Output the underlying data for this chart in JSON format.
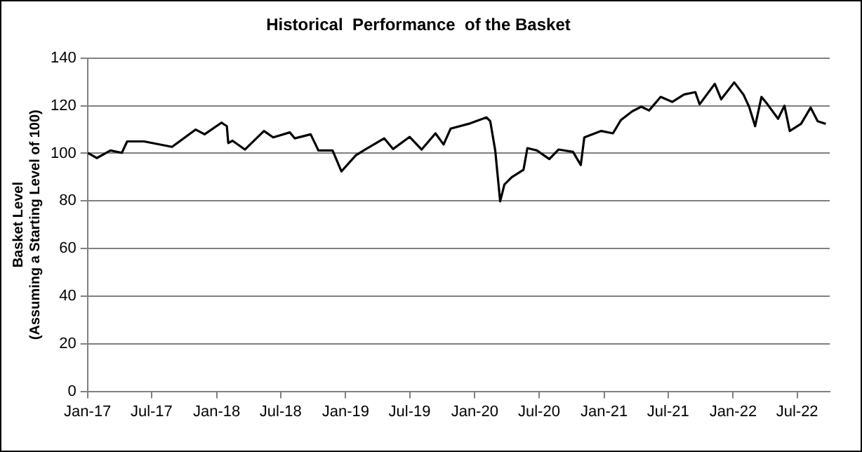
{
  "chart_data": {
    "type": "line",
    "title": "Historical  Performance  of the Basket",
    "ylabel": "Basket Level\n(Assuming a Starting Level of 100)",
    "x": [
      "2017-01-02",
      "2017-01-27",
      "2017-03-07",
      "2017-04-08",
      "2017-04-23",
      "2017-06-10",
      "2017-08-28",
      "2017-11-03",
      "2017-11-28",
      "2018-01-15",
      "2018-01-30",
      "2018-02-03",
      "2018-02-15",
      "2018-03-22",
      "2018-05-15",
      "2018-06-10",
      "2018-07-27",
      "2018-08-10",
      "2018-09-24",
      "2018-10-16",
      "2018-11-25",
      "2018-12-20",
      "2019-01-30",
      "2019-02-25",
      "2019-04-20",
      "2019-05-15",
      "2019-07-01",
      "2019-08-04",
      "2019-09-12",
      "2019-10-05",
      "2019-10-25",
      "2019-12-15",
      "2020-02-03",
      "2020-02-14",
      "2020-02-28",
      "2020-03-13",
      "2020-03-25",
      "2020-04-15",
      "2020-05-18",
      "2020-05-29",
      "2020-06-25",
      "2020-07-30",
      "2020-08-25",
      "2020-10-05",
      "2020-10-27",
      "2020-11-06",
      "2020-12-24",
      "2021-01-26",
      "2021-02-17",
      "2021-03-21",
      "2021-04-16",
      "2021-05-08",
      "2021-06-10",
      "2021-07-13",
      "2021-08-15",
      "2021-09-16",
      "2021-09-28",
      "2021-11-10",
      "2021-11-28",
      "2022-01-04",
      "2022-01-30",
      "2022-02-15",
      "2022-03-04",
      "2022-03-22",
      "2022-04-08",
      "2022-05-08",
      "2022-05-26",
      "2022-06-10",
      "2022-07-12",
      "2022-08-08",
      "2022-08-28",
      "2022-09-20"
    ],
    "series": [
      {
        "color": "#000000",
        "values": [
          100.2,
          98,
          101.2,
          100.2,
          105,
          105,
          102.7,
          110,
          108,
          112.9,
          111.4,
          104.3,
          105.3,
          101.6,
          109.4,
          106.7,
          108.8,
          106.3,
          108,
          101.2,
          101.2,
          92.4,
          99.2,
          101.6,
          106.3,
          101.8,
          106.9,
          101.6,
          108.4,
          103.7,
          110.4,
          112.4,
          115.1,
          113.5,
          101.2,
          79.8,
          86.9,
          90,
          93.1,
          102.2,
          101.2,
          97.6,
          101.6,
          100.6,
          95.1,
          106.7,
          109.4,
          108.4,
          113.9,
          117.6,
          119.6,
          118,
          123.7,
          121.6,
          124.7,
          125.7,
          120.6,
          129.2,
          122.7,
          129.8,
          124.7,
          119.6,
          111.4,
          123.7,
          120.6,
          114.5,
          120,
          109.4,
          112.4,
          119.2,
          113.5,
          112.4
        ]
      }
    ],
    "xlim": [
      "2017-01-01",
      "2022-10-01"
    ],
    "xticks": [
      {
        "value": "2017-01-01",
        "label": "Jan-17"
      },
      {
        "value": "2017-07-01",
        "label": "Jul-17"
      },
      {
        "value": "2018-01-01",
        "label": "Jan-18"
      },
      {
        "value": "2018-07-01",
        "label": "Jul-18"
      },
      {
        "value": "2019-01-01",
        "label": "Jan-19"
      },
      {
        "value": "2019-07-01",
        "label": "Jul-19"
      },
      {
        "value": "2020-01-01",
        "label": "Jan-20"
      },
      {
        "value": "2020-07-01",
        "label": "Jul-20"
      },
      {
        "value": "2021-01-01",
        "label": "Jan-21"
      },
      {
        "value": "2021-07-01",
        "label": "Jul-21"
      },
      {
        "value": "2022-01-01",
        "label": "Jan-22"
      },
      {
        "value": "2022-07-01",
        "label": "Jul-22"
      }
    ],
    "ylim": [
      0,
      140
    ],
    "yticks": [
      0,
      20,
      40,
      60,
      80,
      100,
      120,
      140
    ],
    "grid": "y",
    "legend": false,
    "marker": "none",
    "line_style": "solid"
  }
}
